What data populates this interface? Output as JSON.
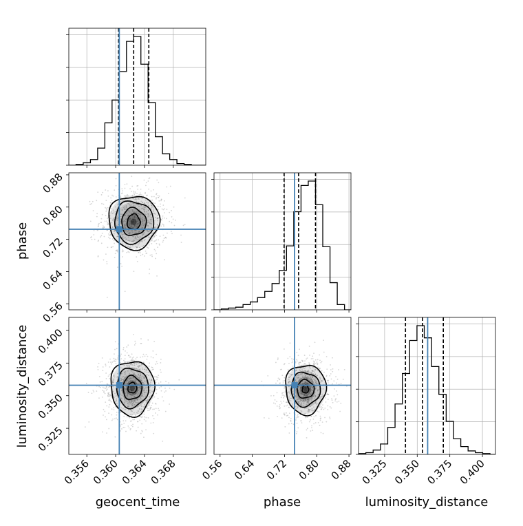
{
  "chart_data": {
    "type": "corner",
    "parameters": [
      "geocent_time",
      "phase",
      "luminosity_distance"
    ],
    "colors": {
      "truth": "#4682b4",
      "hist": "#000000",
      "quantile": "#000000",
      "grid": "#b0b0b0",
      "density": "#000000"
    },
    "grid": true,
    "ranges": {
      "geocent_time": [
        0.3535,
        0.3725
      ],
      "phase": [
        0.545,
        0.885
      ],
      "luminosity_distance": [
        0.305,
        0.41
      ]
    },
    "ticks": {
      "geocent_time": [
        "0.356",
        "0.360",
        "0.364",
        "0.368"
      ],
      "phase": [
        "0.56",
        "0.64",
        "0.72",
        "0.80",
        "0.88"
      ],
      "luminosity_distance": [
        "0.325",
        "0.350",
        "0.375",
        "0.400"
      ]
    },
    "truths": {
      "geocent_time": 0.3605,
      "phase": 0.745,
      "luminosity_distance": 0.358
    },
    "quantiles": {
      "geocent_time": [
        0.3604,
        0.3625,
        0.3646
      ],
      "phase": [
        0.719,
        0.755,
        0.797
      ],
      "luminosity_distance": [
        0.341,
        0.354,
        0.37
      ]
    },
    "histograms": {
      "geocent_time": {
        "bin_edges": [
          0.3535,
          0.3545,
          0.3555,
          0.3565,
          0.3575,
          0.3585,
          0.3595,
          0.3605,
          0.3615,
          0.3625,
          0.3635,
          0.3645,
          0.3655,
          0.3665,
          0.3675,
          0.3685,
          0.3695,
          0.3705,
          0.3715,
          0.3725
        ],
        "counts": [
          0,
          1,
          3,
          7,
          21,
          52,
          80,
          115,
          152,
          158,
          124,
          77,
          35,
          14,
          7,
          2,
          1,
          0,
          0
        ]
      },
      "phase": {
        "bin_edges": [
          0.545,
          0.563,
          0.581,
          0.599,
          0.617,
          0.635,
          0.653,
          0.671,
          0.689,
          0.707,
          0.725,
          0.743,
          0.761,
          0.779,
          0.797,
          0.815,
          0.833,
          0.851,
          0.869,
          0.887
        ],
        "counts": [
          0,
          1,
          2,
          3,
          6,
          9,
          14,
          21,
          30,
          45,
          73,
          112,
          142,
          147,
          120,
          72,
          31,
          6,
          0
        ]
      },
      "luminosity_distance": {
        "bin_edges": [
          0.305,
          0.3106,
          0.3162,
          0.3218,
          0.3274,
          0.333,
          0.3386,
          0.3442,
          0.3498,
          0.3554,
          0.361,
          0.3666,
          0.3722,
          0.3778,
          0.3834,
          0.389,
          0.3946,
          0.4002,
          0.4058,
          0.4114
        ],
        "counts": [
          1,
          2,
          5,
          12,
          31,
          58,
          93,
          131,
          148,
          134,
          101,
          69,
          38,
          18,
          9,
          4,
          2,
          1,
          0
        ]
      }
    },
    "densities": {
      "geocent_time__phase": {
        "center": [
          0.3625,
          0.763
        ],
        "levels": [
          [
            0.0009,
            0.019
          ],
          [
            0.0017,
            0.034
          ],
          [
            0.0027,
            0.052
          ],
          [
            0.0035,
            0.066
          ]
        ]
      },
      "geocent_time__luminosity_distance": {
        "center": [
          0.3623,
          0.356
        ],
        "levels": [
          [
            0.0006,
            0.004
          ],
          [
            0.0013,
            0.009
          ],
          [
            0.0022,
            0.015
          ],
          [
            0.003,
            0.021
          ]
        ]
      },
      "phase__luminosity_distance": {
        "center": [
          0.772,
          0.355
        ],
        "levels": [
          [
            0.008,
            0.003
          ],
          [
            0.021,
            0.007
          ],
          [
            0.036,
            0.013
          ],
          [
            0.05,
            0.019
          ]
        ]
      }
    }
  }
}
